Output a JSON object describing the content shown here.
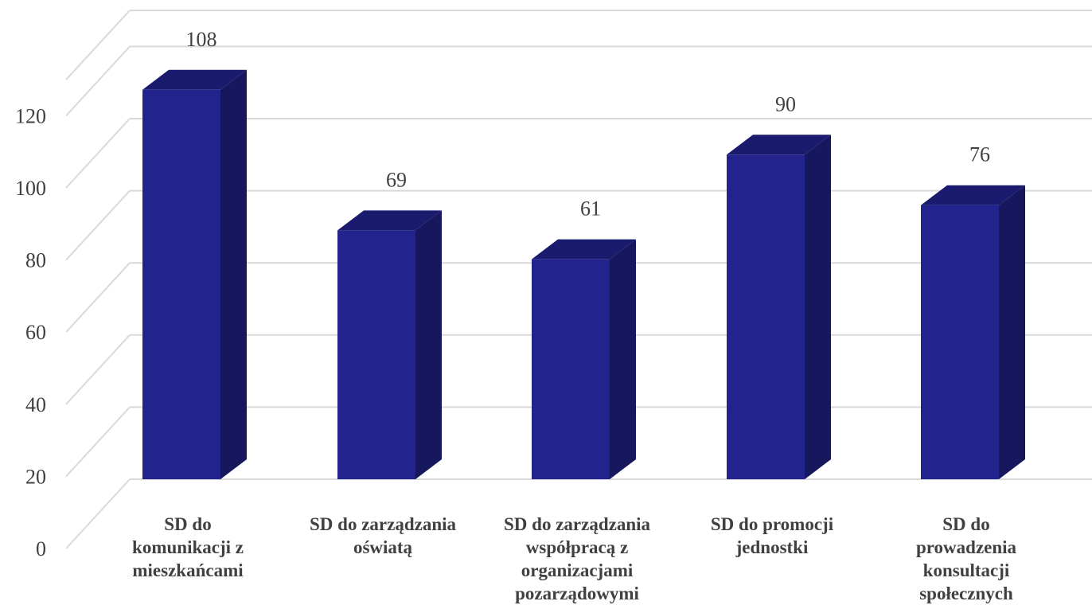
{
  "chart_data": {
    "type": "bar",
    "style": "3d-column",
    "categories": [
      [
        "SD do",
        "komunikacji z",
        "mieszkańcami"
      ],
      [
        "SD do zarządzania",
        "oświatą"
      ],
      [
        "SD do zarządzania",
        "współpracą z",
        "organizacjami",
        "pozarządowymi"
      ],
      [
        "SD do promocji",
        "jednostki"
      ],
      [
        "SD do",
        "prowadzenia",
        "konsultacji",
        "społecznych"
      ]
    ],
    "values": [
      108,
      69,
      61,
      90,
      76
    ],
    "data_labels": [
      "108",
      "69",
      "61",
      "90",
      "76"
    ],
    "yticks": [
      "0",
      "20",
      "40",
      "60",
      "80",
      "100",
      "120"
    ],
    "ylim": [
      0,
      130
    ],
    "title": "",
    "xlabel": "",
    "ylabel": "",
    "grid": true,
    "legend": "none",
    "colors": {
      "bar_front": "#22238c",
      "bar_side": "#16175c",
      "bar_top": "#1a1b6e",
      "grid": "#d9d9d9",
      "text": "#404040"
    }
  }
}
